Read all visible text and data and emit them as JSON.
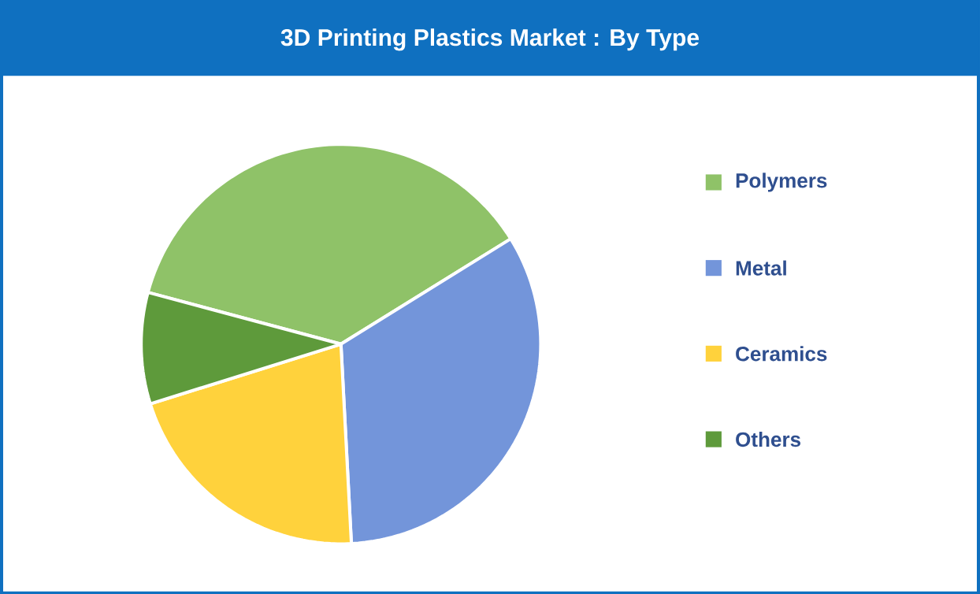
{
  "chart_data": {
    "type": "pie",
    "title": "3D Printing Plastics Market : By Type",
    "categories": [
      "Polymers",
      "Metal",
      "Ceramics",
      "Others"
    ],
    "values": [
      37,
      33,
      21,
      9
    ],
    "colors": [
      "#8fc268",
      "#7395da",
      "#ffd23c",
      "#5e9a3b"
    ],
    "legend": "right"
  }
}
